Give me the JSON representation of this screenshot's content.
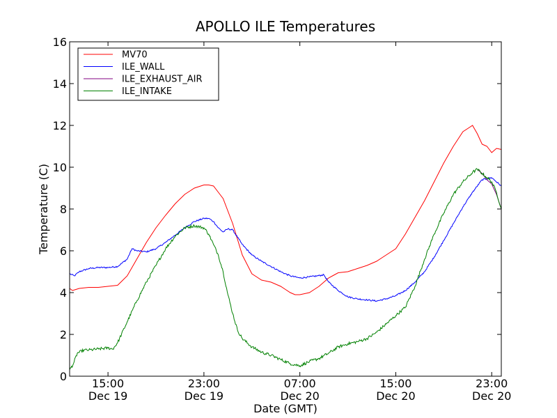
{
  "chart_data": {
    "type": "line",
    "title": "APOLLO ILE Temperatures",
    "xlabel": "Date (GMT)",
    "ylabel": "Temperature (C)",
    "xlim": [
      0,
      45
    ],
    "ylim": [
      0,
      16
    ],
    "y_ticks": [
      {
        "value": 0,
        "label": "0"
      },
      {
        "value": 2,
        "label": "2"
      },
      {
        "value": 4,
        "label": "4"
      },
      {
        "value": 6,
        "label": "6"
      },
      {
        "value": 8,
        "label": "8"
      },
      {
        "value": 10,
        "label": "10"
      },
      {
        "value": 12,
        "label": "12"
      },
      {
        "value": 14,
        "label": "14"
      },
      {
        "value": 16,
        "label": "16"
      }
    ],
    "x_ticks": [
      {
        "value": 4,
        "time": "15:00",
        "date": "Dec 19"
      },
      {
        "value": 14,
        "time": "23:00",
        "date": "Dec 19"
      },
      {
        "value": 24,
        "time": "07:00",
        "date": "Dec 20"
      },
      {
        "value": 34,
        "time": "15:00",
        "date": "Dec 20"
      },
      {
        "value": 44,
        "time": "23:00",
        "date": "Dec 20"
      }
    ],
    "legend_position": "top-left",
    "series": [
      {
        "name": "MV70",
        "color": "#ff0000",
        "x": [
          0,
          0.3,
          1,
          2,
          3,
          4,
          5,
          6,
          7,
          8,
          9,
          10,
          11,
          12,
          13,
          14,
          14.5,
          15,
          16,
          17,
          18,
          19,
          20,
          21,
          22,
          23,
          23.5,
          24,
          25,
          26,
          27,
          28,
          29,
          30,
          31,
          32,
          33,
          34,
          35,
          36,
          37,
          38,
          39,
          40,
          41,
          42,
          42.5,
          43,
          43.5,
          44,
          44.5,
          45
        ],
        "y": [
          4.2,
          4.1,
          4.2,
          4.25,
          4.25,
          4.3,
          4.35,
          4.8,
          5.6,
          6.4,
          7.1,
          7.7,
          8.25,
          8.7,
          9.0,
          9.15,
          9.15,
          9.1,
          8.5,
          7.3,
          5.8,
          4.9,
          4.6,
          4.5,
          4.3,
          4.0,
          3.9,
          3.9,
          4.0,
          4.3,
          4.7,
          4.95,
          5.0,
          5.15,
          5.3,
          5.5,
          5.8,
          6.1,
          6.8,
          7.6,
          8.4,
          9.3,
          10.2,
          11.0,
          11.7,
          12.0,
          11.6,
          11.1,
          11.0,
          10.7,
          10.9,
          10.85
        ]
      },
      {
        "name": "ILE_WALL",
        "color": "#0000ff",
        "x": [
          0,
          0.5,
          1,
          2,
          3,
          4,
          5,
          6,
          6.5,
          7,
          8,
          9,
          10,
          11,
          12,
          13,
          14,
          14.5,
          15,
          15.5,
          16,
          16.5,
          17,
          18,
          19,
          20,
          21,
          22,
          23,
          24,
          25,
          25.8,
          26.5,
          27,
          28,
          29,
          30,
          31,
          32,
          33,
          34,
          35,
          36,
          37,
          38,
          39,
          40,
          41,
          42,
          43,
          44,
          45
        ],
        "y": [
          4.9,
          4.8,
          5.0,
          5.15,
          5.2,
          5.2,
          5.25,
          5.6,
          6.1,
          6.0,
          5.95,
          6.1,
          6.4,
          6.75,
          7.1,
          7.4,
          7.55,
          7.55,
          7.4,
          7.1,
          6.9,
          7.05,
          7.0,
          6.3,
          5.8,
          5.5,
          5.25,
          5.0,
          4.8,
          4.7,
          4.75,
          4.8,
          4.85,
          4.5,
          4.1,
          3.8,
          3.7,
          3.65,
          3.6,
          3.7,
          3.85,
          4.1,
          4.5,
          5.0,
          5.7,
          6.5,
          7.3,
          8.1,
          8.8,
          9.4,
          9.5,
          9.1
        ]
      },
      {
        "name": "ILE_EXHAUST_AIR",
        "color": "#800080",
        "x": [
          42.5,
          43,
          43.5,
          44,
          44.5,
          45
        ],
        "y": [
          9.9,
          9.7,
          9.4,
          9.2,
          8.7,
          8.0
        ]
      },
      {
        "name": "ILE_INTAKE",
        "color": "#008000",
        "x": [
          0,
          0.4,
          0.8,
          1.5,
          2,
          3,
          4,
          4.5,
          5,
          6,
          7,
          8,
          9,
          10,
          11,
          12,
          13,
          14,
          14.5,
          15,
          15.5,
          16,
          16.5,
          17,
          17.5,
          18,
          19,
          20,
          21,
          22,
          23,
          24,
          25,
          26,
          27,
          28,
          29,
          30,
          31,
          32,
          33,
          34,
          35,
          36,
          37,
          38,
          39,
          40,
          41,
          42,
          42.5,
          43,
          43.5,
          44,
          44.5,
          45
        ],
        "y": [
          0.3,
          0.6,
          1.1,
          1.25,
          1.25,
          1.3,
          1.35,
          1.3,
          1.6,
          2.6,
          3.6,
          4.5,
          5.3,
          6.1,
          6.7,
          7.1,
          7.2,
          7.1,
          6.8,
          6.3,
          5.8,
          5.0,
          3.9,
          3.0,
          2.2,
          1.8,
          1.4,
          1.15,
          1.0,
          0.8,
          0.6,
          0.5,
          0.7,
          0.85,
          1.1,
          1.4,
          1.55,
          1.65,
          1.8,
          2.1,
          2.5,
          2.9,
          3.3,
          4.3,
          5.6,
          6.8,
          7.8,
          8.7,
          9.3,
          9.75,
          9.9,
          9.7,
          9.5,
          9.3,
          8.8,
          8.0
        ]
      }
    ]
  }
}
